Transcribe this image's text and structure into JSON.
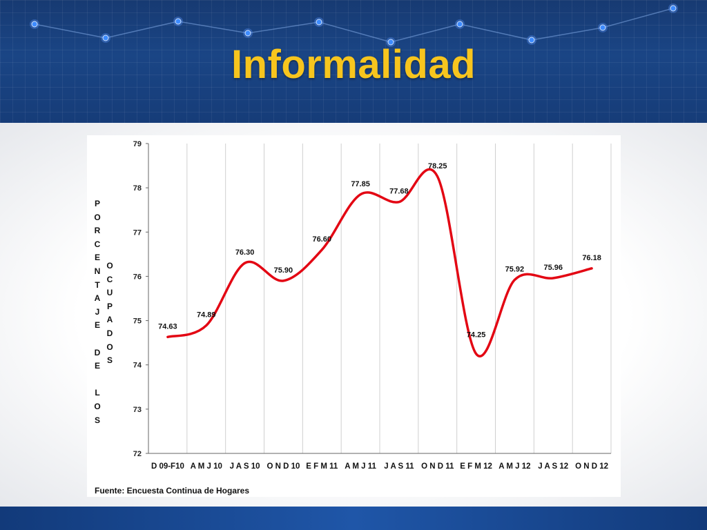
{
  "slide": {
    "title": "Informalidad"
  },
  "colors": {
    "title": "#f7c51e",
    "header_bg": "#1a4585",
    "line": "#e30613"
  },
  "source": "Fuente: Encuesta Continua de Hogares",
  "chart_data": {
    "type": "line",
    "title": "",
    "ylabel_lines": [
      "PORCENTAJE DE LOS",
      "OCUPADOS"
    ],
    "xlabel": "",
    "ylim": [
      72,
      79
    ],
    "yticks": [
      72,
      73,
      74,
      75,
      76,
      77,
      78,
      79
    ],
    "categories": [
      "D 09-F10",
      "A M J 10",
      "J A S 10",
      "O N D 10",
      "E F M 11",
      "A M J 11",
      "J A S 11",
      "O N D 11",
      "E F M 12",
      "A M J 12",
      "J A S 12",
      "O N D 12"
    ],
    "series": [
      {
        "values": [
          74.63,
          74.89,
          76.3,
          75.9,
          76.6,
          77.85,
          77.68,
          78.25,
          74.25,
          75.92,
          75.96,
          76.18
        ],
        "labels": [
          "74.63",
          "74.89",
          "76.30",
          "75.90",
          "76.60",
          "77.85",
          "77.68",
          "78.25",
          "74.25",
          "75.92",
          "75.96",
          "76.18"
        ]
      }
    ],
    "grid": {
      "vertical": true,
      "horizontal": false
    },
    "legend": "none"
  }
}
